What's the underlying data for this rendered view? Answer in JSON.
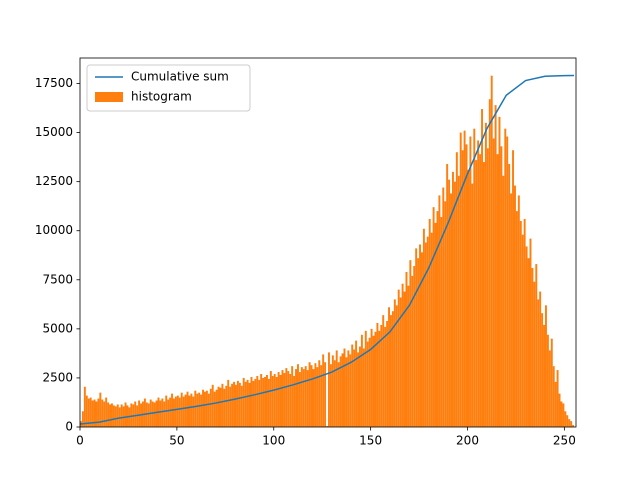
{
  "chart_data": {
    "type": "histogram",
    "xlim": [
      0,
      256
    ],
    "ylim": [
      0,
      18800
    ],
    "xticks": [
      0,
      50,
      100,
      150,
      200,
      250
    ],
    "yticks": [
      0,
      2500,
      5000,
      7500,
      10000,
      12500,
      15000,
      17500
    ],
    "legend": "upper left",
    "series": [
      {
        "name": "Cumulative sum",
        "type": "line",
        "color": "#1f77b4",
        "x": [
          0,
          10,
          20,
          30,
          40,
          50,
          60,
          70,
          80,
          90,
          100,
          110,
          120,
          130,
          140,
          150,
          160,
          170,
          180,
          190,
          200,
          210,
          220,
          230,
          240,
          250,
          255
        ],
        "values": [
          150,
          250,
          450,
          600,
          750,
          900,
          1050,
          1220,
          1420,
          1640,
          1880,
          2150,
          2450,
          2800,
          3300,
          3950,
          4850,
          6200,
          8100,
          10400,
          12900,
          15200,
          16900,
          17650,
          17870,
          17900,
          17910
        ]
      },
      {
        "name": "histogram",
        "type": "histogram",
        "color": "#ff7f0e",
        "bins": [
          0,
          1,
          2,
          3,
          4,
          5,
          6,
          7,
          8,
          9,
          10,
          11,
          12,
          13,
          14,
          15,
          16,
          17,
          18,
          19,
          20,
          21,
          22,
          23,
          24,
          25,
          26,
          27,
          28,
          29,
          30,
          31,
          32,
          33,
          34,
          35,
          36,
          37,
          38,
          39,
          40,
          41,
          42,
          43,
          44,
          45,
          46,
          47,
          48,
          49,
          50,
          51,
          52,
          53,
          54,
          55,
          56,
          57,
          58,
          59,
          60,
          61,
          62,
          63,
          64,
          65,
          66,
          67,
          68,
          69,
          70,
          71,
          72,
          73,
          74,
          75,
          76,
          77,
          78,
          79,
          80,
          81,
          82,
          83,
          84,
          85,
          86,
          87,
          88,
          89,
          90,
          91,
          92,
          93,
          94,
          95,
          96,
          97,
          98,
          99,
          100,
          101,
          102,
          103,
          104,
          105,
          106,
          107,
          108,
          109,
          110,
          111,
          112,
          113,
          114,
          115,
          116,
          117,
          118,
          119,
          120,
          121,
          122,
          123,
          124,
          125,
          126,
          127,
          128,
          129,
          130,
          131,
          132,
          133,
          134,
          135,
          136,
          137,
          138,
          139,
          140,
          141,
          142,
          143,
          144,
          145,
          146,
          147,
          148,
          149,
          150,
          151,
          152,
          153,
          154,
          155,
          156,
          157,
          158,
          159,
          160,
          161,
          162,
          163,
          164,
          165,
          166,
          167,
          168,
          169,
          170,
          171,
          172,
          173,
          174,
          175,
          176,
          177,
          178,
          179,
          180,
          181,
          182,
          183,
          184,
          185,
          186,
          187,
          188,
          189,
          190,
          191,
          192,
          193,
          194,
          195,
          196,
          197,
          198,
          199,
          200,
          201,
          202,
          203,
          204,
          205,
          206,
          207,
          208,
          209,
          210,
          211,
          212,
          213,
          214,
          215,
          216,
          217,
          218,
          219,
          220,
          221,
          222,
          223,
          224,
          225,
          226,
          227,
          228,
          229,
          230,
          231,
          232,
          233,
          234,
          235,
          236,
          237,
          238,
          239,
          240,
          241,
          242,
          243,
          244,
          245,
          246,
          247,
          248,
          249,
          250,
          251,
          252,
          253,
          254,
          255,
          256
        ],
        "values": [
          300,
          800,
          2050,
          1600,
          1450,
          1500,
          1350,
          1400,
          1300,
          1450,
          1750,
          1400,
          1300,
          1500,
          1250,
          1150,
          1200,
          1100,
          1050,
          1150,
          1000,
          1150,
          1050,
          1250,
          1100,
          1000,
          1200,
          1150,
          1300,
          1100,
          1350,
          1200,
          1300,
          1450,
          1250,
          1200,
          1400,
          1300,
          1250,
          1350,
          1500,
          1350,
          1450,
          1300,
          1600,
          1400,
          1500,
          1700,
          1450,
          1550,
          1600,
          1500,
          1750,
          1550,
          1650,
          1800,
          1600,
          1700,
          1550,
          1850,
          1700,
          1750,
          1650,
          1900,
          1800,
          1850,
          1700,
          1950,
          2150,
          1800,
          1900,
          2050,
          2000,
          2200,
          1950,
          2100,
          2400,
          2050,
          2200,
          2300,
          2150,
          2350,
          2250,
          2100,
          2500,
          2300,
          2400,
          2250,
          2550,
          2350,
          2450,
          2600,
          2400,
          2700,
          2500,
          2550,
          2650,
          2450,
          2850,
          2600,
          2700,
          2550,
          2800,
          2650,
          2900,
          2750,
          3000,
          2850,
          2700,
          3100,
          2600,
          2950,
          3200,
          2800,
          3050,
          2950,
          3100,
          2900,
          3300,
          3150,
          2950,
          3250,
          3050,
          3400,
          3150,
          3700,
          3300,
          50,
          3800,
          3200,
          3650,
          3400,
          3900,
          3300,
          3600,
          3750,
          4000,
          3550,
          3900,
          3700,
          4200,
          3950,
          4400,
          3800,
          4100,
          4700,
          4000,
          4900,
          4350,
          4550,
          5000,
          4650,
          4850,
          5300,
          4900,
          5200,
          5700,
          5100,
          5400,
          6100,
          5700,
          5900,
          6500,
          6200,
          7000,
          6600,
          7300,
          6900,
          7900,
          7200,
          8500,
          7700,
          8200,
          9100,
          8600,
          9300,
          8900,
          10100,
          9400,
          9700,
          10600,
          9900,
          11200,
          10400,
          11000,
          11800,
          10700,
          12200,
          11500,
          13400,
          12600,
          11900,
          13000,
          12500,
          14000,
          12800,
          15000,
          14100,
          15100,
          14400,
          13100,
          14800,
          12400,
          15200,
          13600,
          14600,
          13900,
          16200,
          13500,
          15500,
          14200,
          16700,
          17900,
          14700,
          16400,
          13900,
          15800,
          14300,
          12800,
          15200,
          14800,
          13400,
          11900,
          14100,
          12300,
          11000,
          11800,
          10500,
          9800,
          10600,
          9200,
          8600,
          9600,
          8100,
          7400,
          8300,
          6500,
          6900,
          5800,
          5200,
          6200,
          4700,
          3900,
          4500,
          3100,
          2300,
          2900,
          1700,
          1300,
          1200,
          800,
          600,
          400,
          300,
          100,
          0
        ]
      }
    ]
  }
}
